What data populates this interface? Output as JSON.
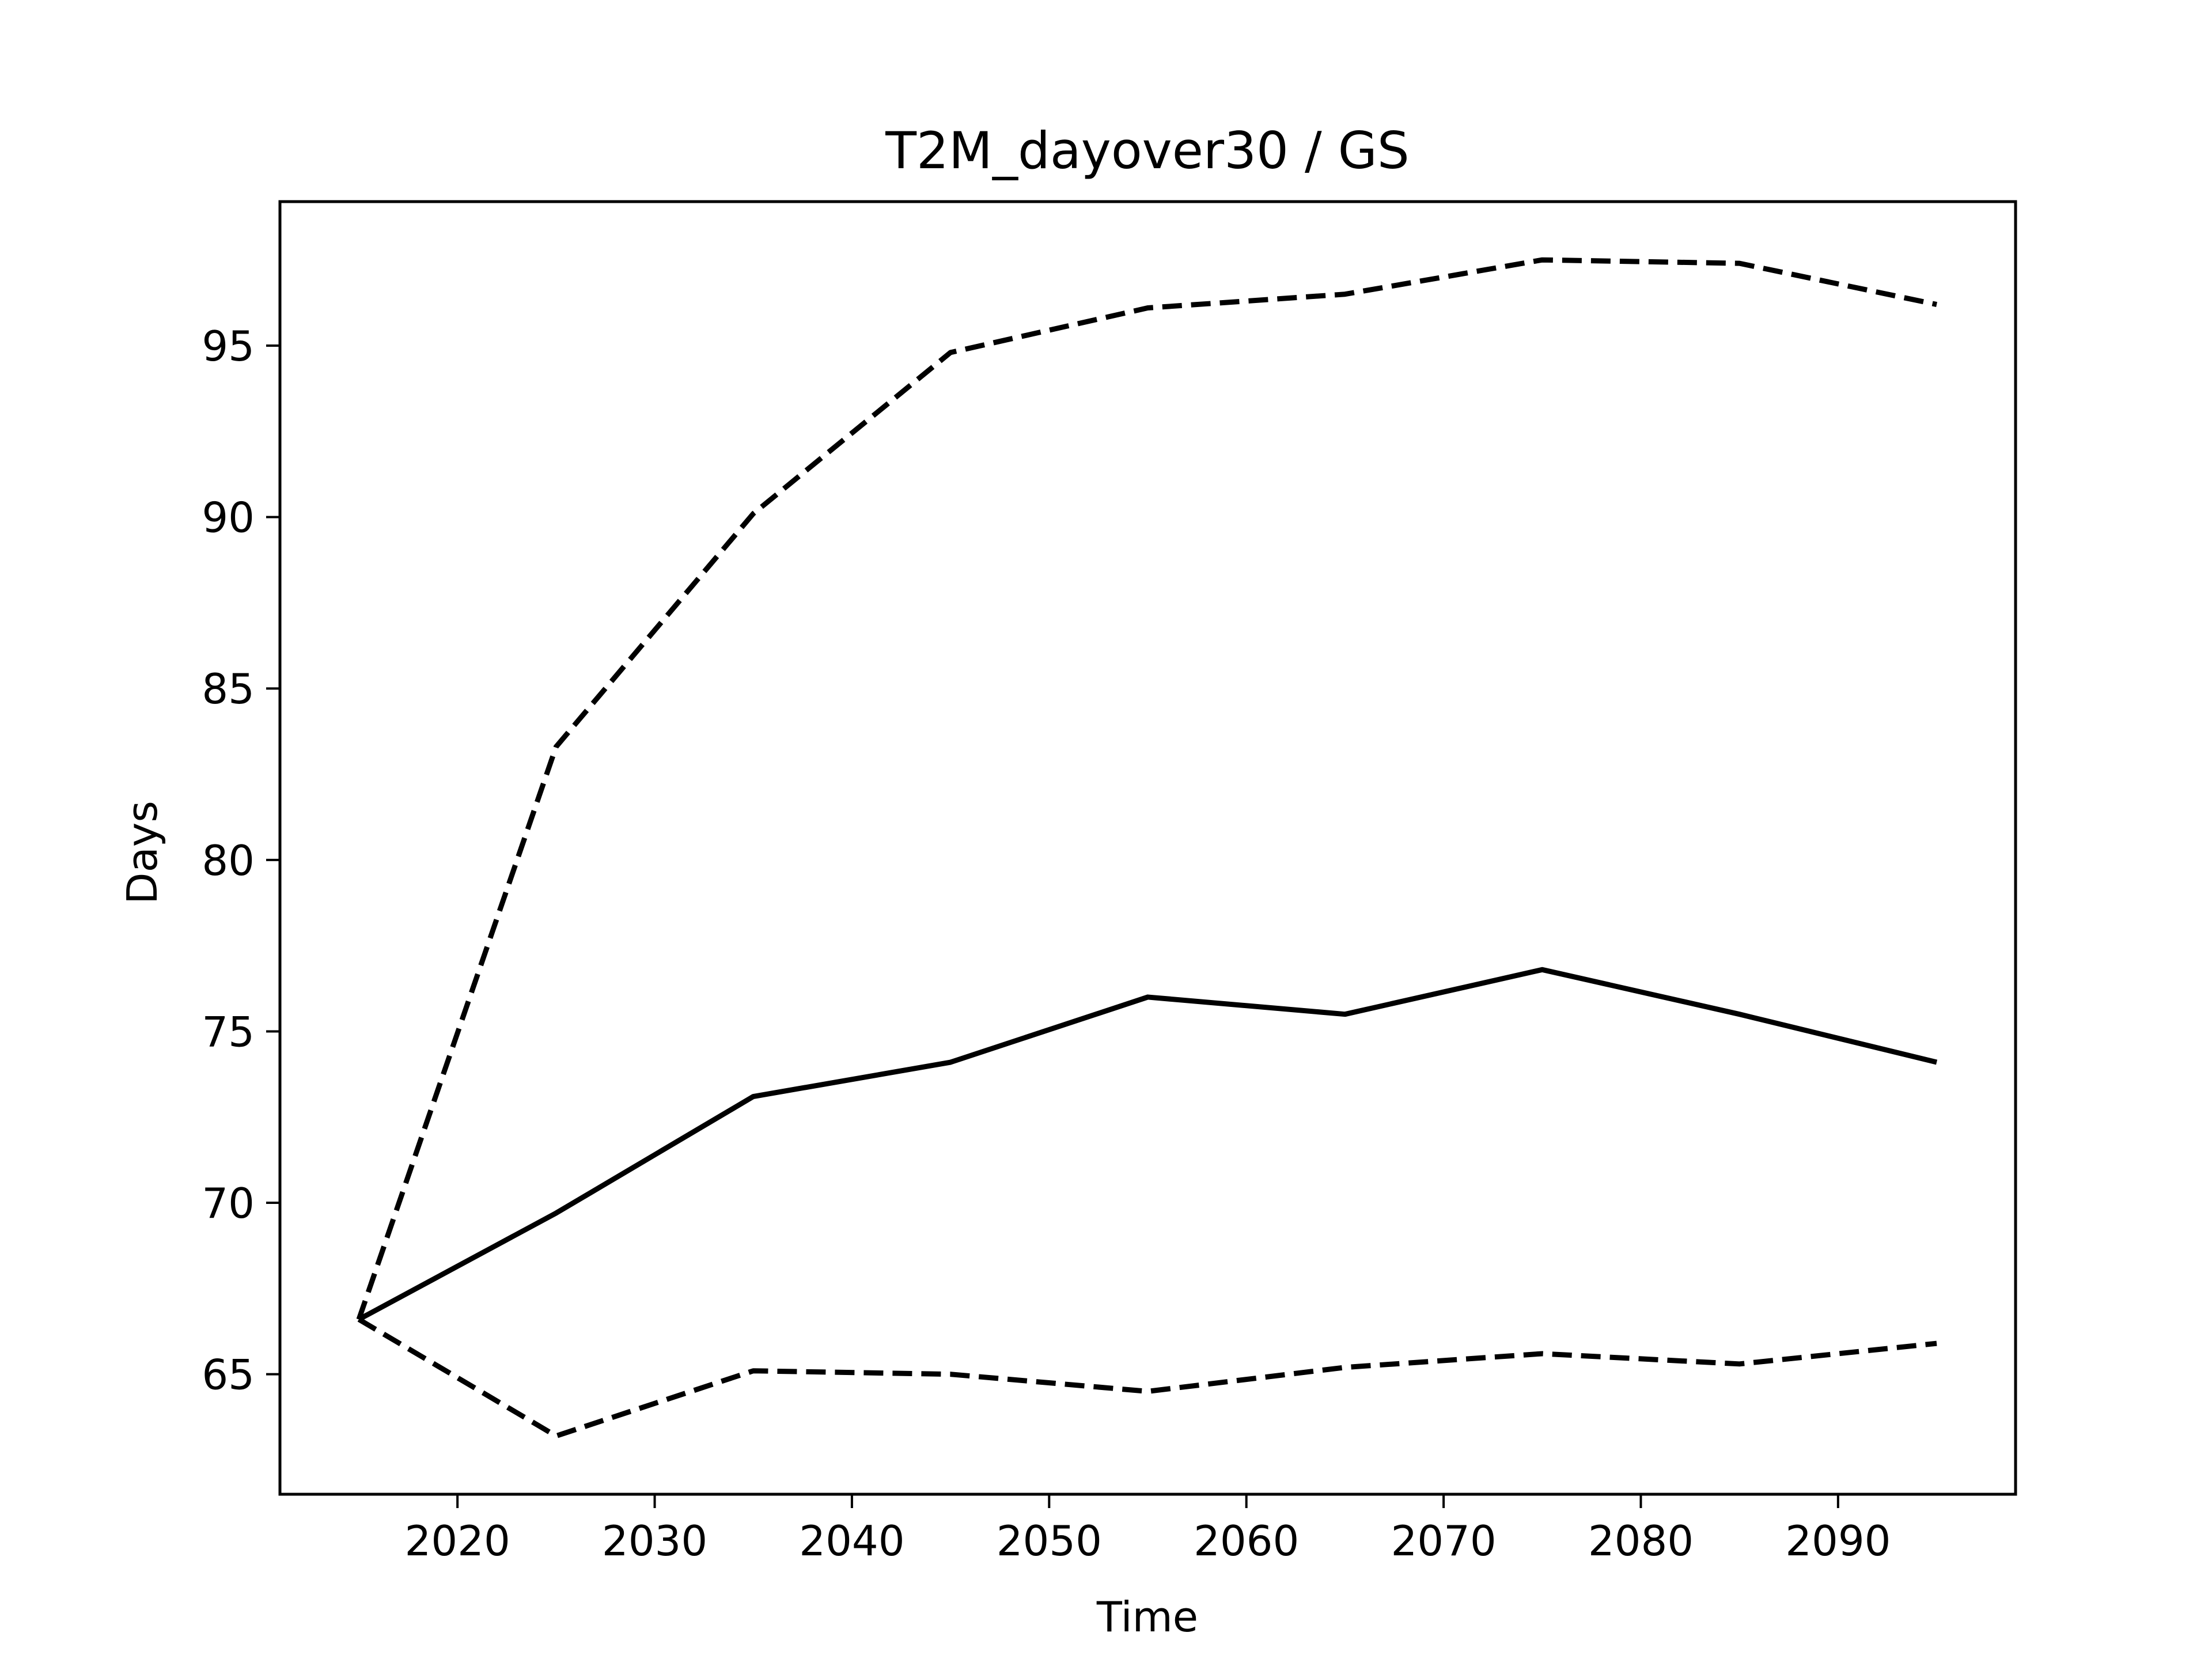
{
  "chart_data": {
    "type": "line",
    "title": "T2M_dayover30 / GS",
    "xlabel": "Time",
    "ylabel": "Days",
    "xlim": [
      2011,
      2099
    ],
    "ylim": [
      61.5,
      99.2
    ],
    "xticks": [
      2020,
      2030,
      2040,
      2050,
      2060,
      2070,
      2080,
      2090
    ],
    "yticks": [
      65,
      70,
      75,
      80,
      85,
      90,
      95
    ],
    "grid": false,
    "x": [
      2015,
      2025,
      2035,
      2045,
      2055,
      2065,
      2075,
      2085,
      2095
    ],
    "series": [
      {
        "style": "solid",
        "color": "#000000",
        "values": [
          66.6,
          69.7,
          73.1,
          74.1,
          76.0,
          75.5,
          76.8,
          75.5,
          74.1
        ]
      },
      {
        "style": "dashed",
        "color": "#000000",
        "values": [
          66.6,
          83.3,
          90.1,
          94.8,
          96.1,
          96.5,
          97.5,
          97.4,
          96.2
        ]
      },
      {
        "style": "dashed",
        "color": "#000000",
        "values": [
          66.6,
          63.2,
          65.1,
          65.0,
          64.5,
          65.2,
          65.6,
          65.3,
          65.9
        ]
      }
    ]
  }
}
